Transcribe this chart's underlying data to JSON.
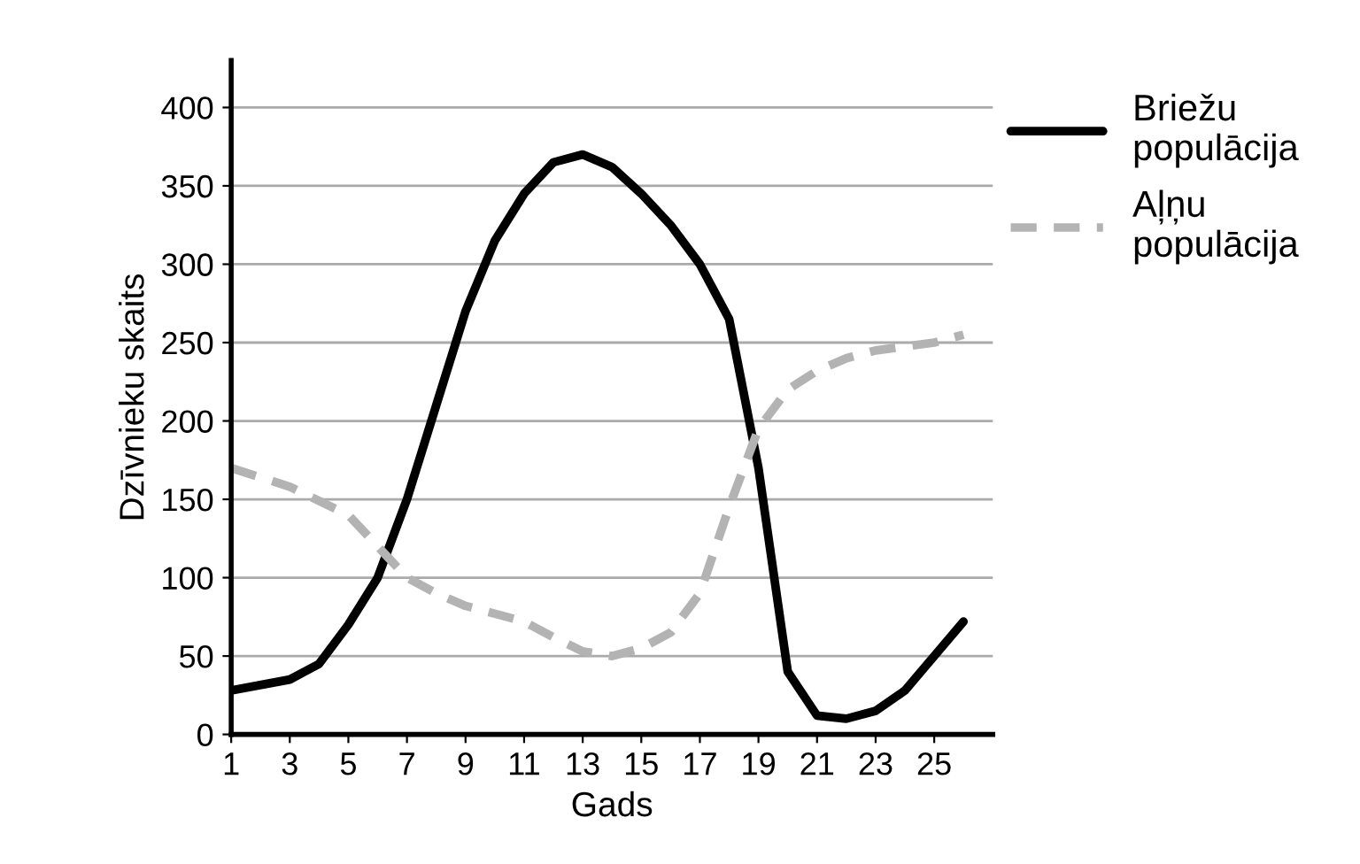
{
  "chart_data": {
    "type": "line",
    "xlabel": "Gads",
    "ylabel": "Dzīvnieku skaits",
    "xlim": [
      1,
      27
    ],
    "ylim": [
      0,
      430
    ],
    "xticks": [
      1,
      3,
      5,
      7,
      9,
      11,
      13,
      15,
      17,
      19,
      21,
      23,
      25
    ],
    "yticks": [
      0,
      50,
      100,
      150,
      200,
      250,
      300,
      350,
      400
    ],
    "grid": "y",
    "legend": "top right",
    "tick_labels": [
      "x",
      "y"
    ],
    "series": [
      {
        "name": "Briežu\npopulācija",
        "color": "#000000",
        "line_style": "solid",
        "x": [
          1,
          3,
          4,
          5,
          6,
          7,
          8,
          9,
          10,
          11,
          12,
          13,
          14,
          15,
          16,
          17,
          18,
          19,
          20,
          21,
          22,
          23,
          24,
          25,
          26
        ],
        "values": [
          28,
          35,
          45,
          70,
          100,
          150,
          210,
          270,
          315,
          345,
          365,
          370,
          362,
          345,
          325,
          300,
          265,
          170,
          40,
          12,
          10,
          15,
          28,
          50,
          72
        ]
      },
      {
        "name": "Aļņu\npopulācija",
        "color": "#b3b3b3",
        "line_style": "dashed",
        "x": [
          1,
          3,
          5,
          6,
          7,
          8,
          9,
          11,
          12,
          13,
          14,
          15,
          16,
          17,
          18,
          19,
          20,
          21,
          22,
          23,
          25,
          26
        ],
        "values": [
          170,
          158,
          140,
          120,
          100,
          90,
          82,
          72,
          62,
          53,
          50,
          55,
          65,
          90,
          145,
          195,
          220,
          232,
          240,
          245,
          250,
          255
        ]
      }
    ]
  }
}
